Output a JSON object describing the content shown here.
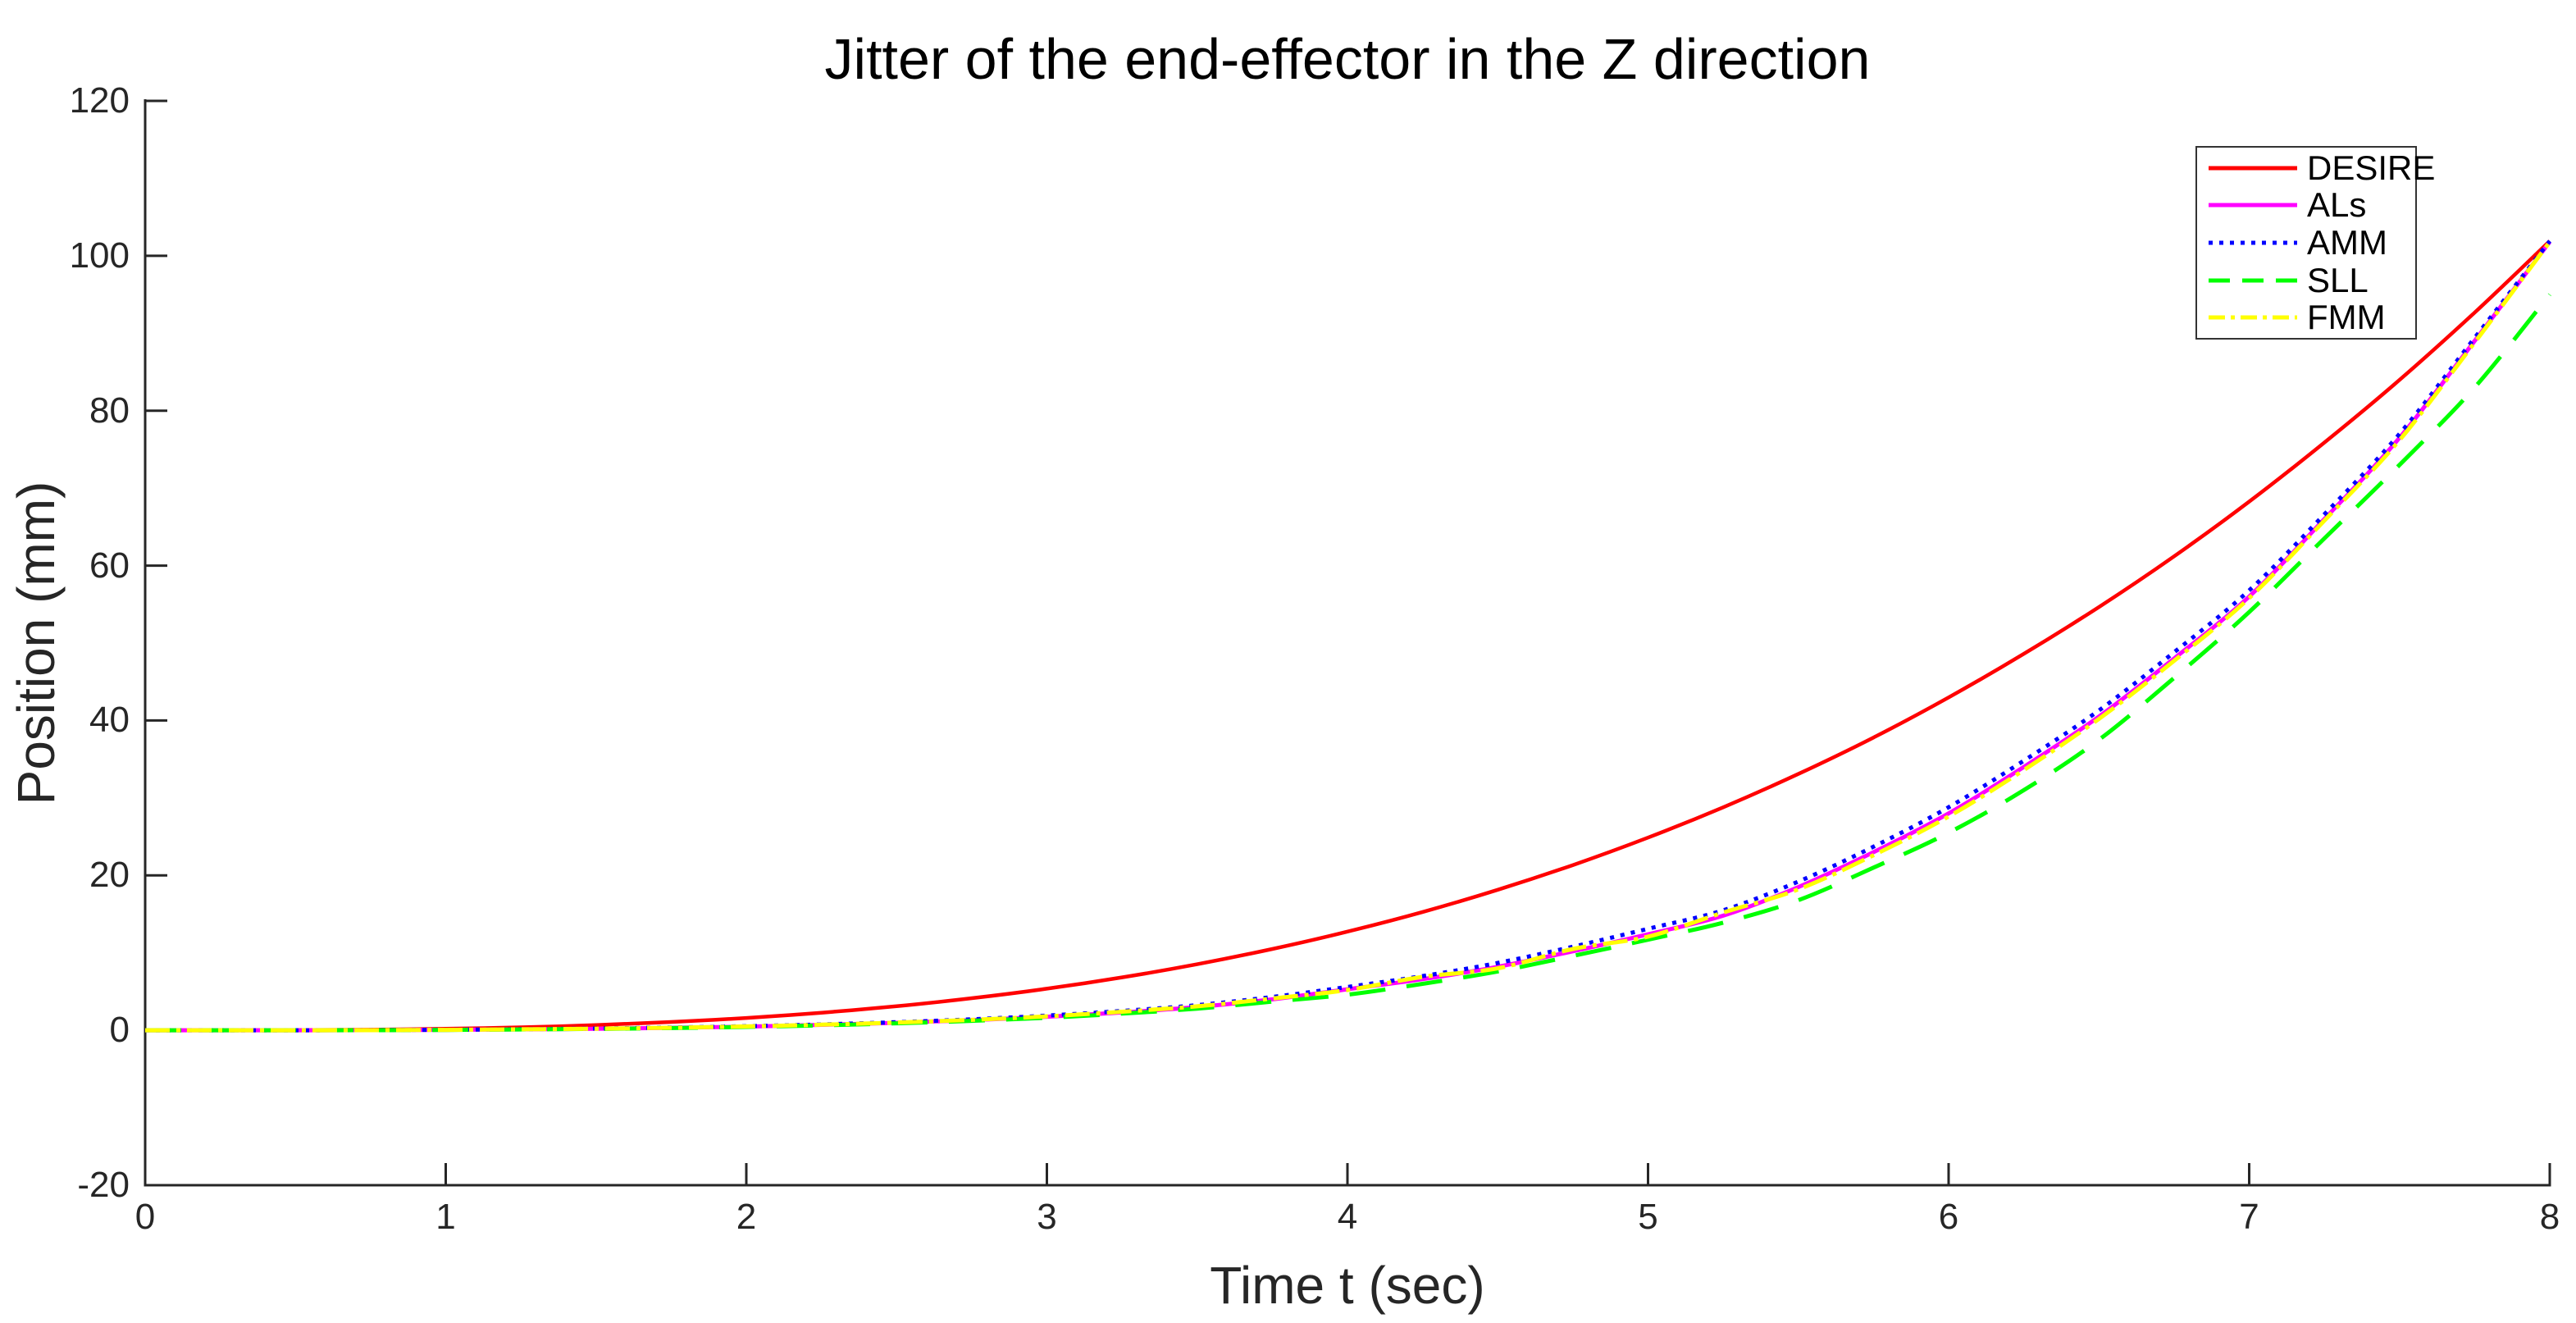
{
  "figure": {
    "background": "#ffffff",
    "axis_color": "#262626",
    "title_color": "#000000",
    "legend_border_color": "#333333"
  },
  "chart_data": {
    "type": "line",
    "title": "Jitter of the end-effector in the Z direction",
    "xlabel": "Time t (sec)",
    "ylabel": "Position (mm)",
    "xlim": [
      0,
      8
    ],
    "ylim": [
      -20,
      120
    ],
    "xticks": [
      0,
      1,
      2,
      3,
      4,
      5,
      6,
      7,
      8
    ],
    "yticks": [
      -20,
      0,
      20,
      40,
      60,
      80,
      100,
      120
    ],
    "grid": false,
    "legend_position": "upper-right",
    "x": [
      0,
      0.25,
      0.5,
      0.75,
      1,
      1.25,
      1.5,
      1.75,
      2,
      2.25,
      2.5,
      2.75,
      3,
      3.25,
      3.5,
      3.75,
      4,
      4.25,
      4.5,
      4.75,
      5,
      5.25,
      5.5,
      5.75,
      6,
      6.25,
      6.5,
      6.75,
      7,
      7.25,
      7.5,
      7.75,
      8
    ],
    "series": [
      {
        "name": "DESIRE",
        "color": "#ff0000",
        "style": "solid",
        "width": 4.5,
        "values": [
          0,
          0,
          0.03,
          0.08,
          0.2,
          0.39,
          0.67,
          1.07,
          1.59,
          2.27,
          3.11,
          4.14,
          5.37,
          6.83,
          8.53,
          10.5,
          12.74,
          15.28,
          18.14,
          21.33,
          24.88,
          28.79,
          33.1,
          37.8,
          42.98,
          48.6,
          54.65,
          61.19,
          68.26,
          75.88,
          83.97,
          92.67,
          101.9
        ]
      },
      {
        "name": "ALs",
        "color": "#ff00ff",
        "style": "solid",
        "width": 5,
        "values": [
          0,
          0,
          0,
          0.02,
          0.06,
          0.12,
          0.2,
          0.32,
          0.48,
          0.7,
          0.97,
          1.32,
          1.75,
          2.3,
          3,
          4,
          5.3,
          6.6,
          8.2,
          10.2,
          12.4,
          14.8,
          18.5,
          23,
          28,
          34,
          40.5,
          48,
          56,
          66,
          76.5,
          89,
          101.8
        ]
      },
      {
        "name": "AMM",
        "color": "#0000ff",
        "style": "dotted",
        "width": 5,
        "values": [
          0,
          0,
          0,
          0.03,
          0.07,
          0.14,
          0.23,
          0.36,
          0.53,
          0.76,
          1.05,
          1.42,
          1.9,
          2.5,
          3.25,
          4.3,
          5.6,
          7,
          8.7,
          10.8,
          13.1,
          15.5,
          19.2,
          23.7,
          28.8,
          34.8,
          41.3,
          48.8,
          56.8,
          66.6,
          77,
          89.4,
          101.9
        ]
      },
      {
        "name": "SLL",
        "color": "#00ff00",
        "style": "dashed",
        "width": 5,
        "values": [
          0,
          0,
          0,
          0.02,
          0.05,
          0.11,
          0.18,
          0.29,
          0.44,
          0.64,
          0.9,
          1.22,
          1.62,
          2.15,
          2.8,
          3.7,
          4.6,
          6,
          7.6,
          9.6,
          11.7,
          13.9,
          16.8,
          21,
          25.5,
          31,
          37.5,
          45.5,
          54,
          63.5,
          73,
          83,
          95
        ]
      },
      {
        "name": "FMM",
        "color": "#ffff00",
        "style": "dashdot",
        "width": 5,
        "values": [
          0,
          0,
          0,
          0.02,
          0.06,
          0.13,
          0.21,
          0.33,
          0.5,
          0.72,
          1,
          1.35,
          1.8,
          2.4,
          3.1,
          4.1,
          5.2,
          6.9,
          8,
          10.5,
          12.1,
          15.2,
          18.2,
          22.6,
          27.6,
          33.6,
          40.2,
          47.7,
          55.8,
          65.8,
          76.2,
          88.8,
          101.8
        ]
      }
    ]
  }
}
